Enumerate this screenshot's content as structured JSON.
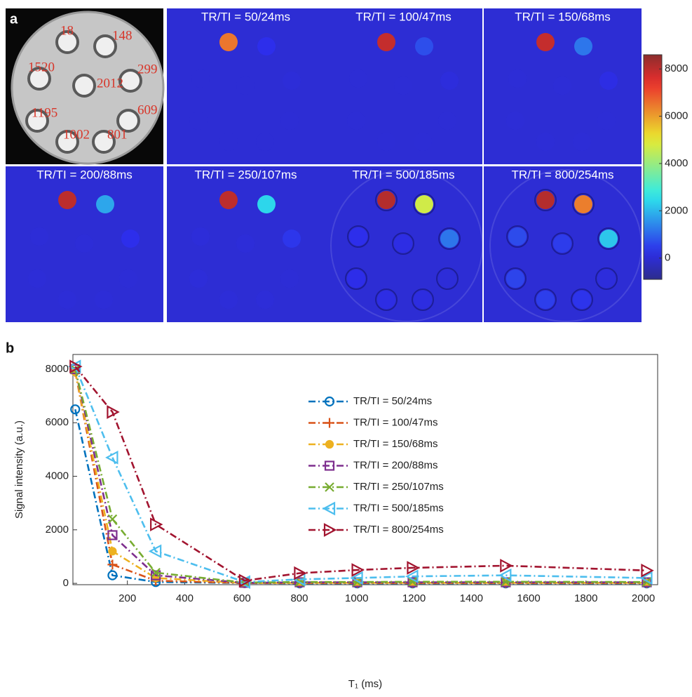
{
  "panel_a": {
    "label": "a",
    "clim": [
      -900,
      8600
    ],
    "cticks": [
      0,
      2000,
      4000,
      6000,
      8000
    ]
  },
  "panel_b": {
    "label": "b"
  },
  "chart_data": {
    "type": "line",
    "x": [
      18,
      148,
      299,
      609,
      801,
      1002,
      1195,
      1520,
      2012
    ],
    "xlabel": "T₁ (ms)",
    "ylabel": "Signal intensity (a.u.)",
    "xlim": [
      10,
      2050
    ],
    "xticks": [
      200,
      400,
      600,
      800,
      1000,
      1200,
      1400,
      1600,
      1800,
      2000
    ],
    "ylim": [
      -50,
      8550
    ],
    "yticks": [
      0,
      2000,
      4000,
      6000,
      8000
    ],
    "legend": "upper right",
    "series": [
      {
        "name": "TR/TI = 50/24ms",
        "color": "#0072bd",
        "marker": "circle",
        "values": [
          6500,
          300,
          50,
          10,
          0,
          0,
          0,
          0,
          0
        ]
      },
      {
        "name": "TR/TI = 100/47ms",
        "color": "#d95319",
        "marker": "plus",
        "values": [
          7900,
          700,
          100,
          10,
          10,
          10,
          10,
          10,
          10
        ]
      },
      {
        "name": "TR/TI = 150/68ms",
        "color": "#edb120",
        "marker": "dot",
        "values": [
          7900,
          1200,
          200,
          10,
          20,
          20,
          20,
          20,
          20
        ]
      },
      {
        "name": "TR/TI = 200/88ms",
        "color": "#7e2f8e",
        "marker": "square",
        "values": [
          8000,
          1800,
          300,
          20,
          40,
          40,
          40,
          40,
          40
        ]
      },
      {
        "name": "TR/TI = 250/107ms",
        "color": "#77ac30",
        "marker": "x",
        "values": [
          8000,
          2400,
          400,
          30,
          50,
          50,
          60,
          60,
          50
        ]
      },
      {
        "name": "TR/TI = 500/185ms",
        "color": "#4dbeee",
        "marker": "triangle-left",
        "values": [
          8100,
          4700,
          1200,
          50,
          150,
          200,
          260,
          300,
          200
        ]
      },
      {
        "name": "TR/TI = 800/254ms",
        "color": "#a2142f",
        "marker": "triangle-right",
        "values": [
          8100,
          6400,
          2200,
          100,
          380,
          500,
          580,
          660,
          480
        ]
      }
    ]
  }
}
